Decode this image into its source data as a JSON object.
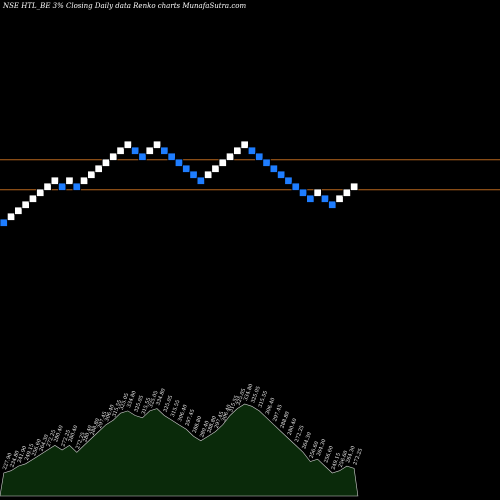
{
  "chart_data": {
    "type": "renko",
    "title": "NSE HTL_BE 3% Closing Daily data Renko charts MunafaSutra.com",
    "colors": {
      "background": "#000000",
      "up_brick": "#ffffff",
      "down_brick": "#1e7dff",
      "reference_line": "#b5651d",
      "volume_fill": "#0a2a0a",
      "volume_stroke": "#cfcfcf",
      "label_text": "#ffffff"
    },
    "bricks": [
      {
        "dir": "down",
        "level": 0
      },
      {
        "dir": "up",
        "level": 1
      },
      {
        "dir": "up",
        "level": 2
      },
      {
        "dir": "up",
        "level": 3
      },
      {
        "dir": "up",
        "level": 4
      },
      {
        "dir": "up",
        "level": 5
      },
      {
        "dir": "up",
        "level": 6
      },
      {
        "dir": "up",
        "level": 7
      },
      {
        "dir": "down",
        "level": 6
      },
      {
        "dir": "up",
        "level": 7
      },
      {
        "dir": "down",
        "level": 6
      },
      {
        "dir": "up",
        "level": 7
      },
      {
        "dir": "up",
        "level": 8
      },
      {
        "dir": "up",
        "level": 9
      },
      {
        "dir": "up",
        "level": 10
      },
      {
        "dir": "up",
        "level": 11
      },
      {
        "dir": "up",
        "level": 12
      },
      {
        "dir": "up",
        "level": 13
      },
      {
        "dir": "down",
        "level": 12
      },
      {
        "dir": "down",
        "level": 11
      },
      {
        "dir": "up",
        "level": 12
      },
      {
        "dir": "up",
        "level": 13
      },
      {
        "dir": "down",
        "level": 12
      },
      {
        "dir": "down",
        "level": 11
      },
      {
        "dir": "down",
        "level": 10
      },
      {
        "dir": "down",
        "level": 9
      },
      {
        "dir": "down",
        "level": 8
      },
      {
        "dir": "down",
        "level": 7
      },
      {
        "dir": "up",
        "level": 8
      },
      {
        "dir": "up",
        "level": 9
      },
      {
        "dir": "up",
        "level": 10
      },
      {
        "dir": "up",
        "level": 11
      },
      {
        "dir": "up",
        "level": 12
      },
      {
        "dir": "up",
        "level": 13
      },
      {
        "dir": "down",
        "level": 12
      },
      {
        "dir": "down",
        "level": 11
      },
      {
        "dir": "down",
        "level": 10
      },
      {
        "dir": "down",
        "level": 9
      },
      {
        "dir": "down",
        "level": 8
      },
      {
        "dir": "down",
        "level": 7
      },
      {
        "dir": "down",
        "level": 6
      },
      {
        "dir": "down",
        "level": 5
      },
      {
        "dir": "down",
        "level": 4
      },
      {
        "dir": "up",
        "level": 5
      },
      {
        "dir": "down",
        "level": 4
      },
      {
        "dir": "down",
        "level": 3
      },
      {
        "dir": "up",
        "level": 4
      },
      {
        "dir": "up",
        "level": 5
      },
      {
        "dir": "up",
        "level": 6
      }
    ],
    "reference_lines": [
      {
        "level": 10.5
      },
      {
        "level": 5.5
      }
    ],
    "volume_area": [
      10,
      11,
      13,
      14,
      16,
      18,
      20,
      22,
      20,
      22,
      19,
      22,
      25,
      28,
      31,
      33,
      36,
      37,
      35,
      34,
      37,
      38,
      35,
      33,
      31,
      29,
      26,
      24,
      26,
      28,
      31,
      35,
      38,
      40,
      39,
      37,
      34,
      31,
      28,
      25,
      22,
      19,
      15,
      16,
      13,
      10,
      11,
      13,
      12
    ],
    "volume_max": 60,
    "price_labels": [
      "227.90",
      "234.80",
      "241.90",
      "249.15",
      "256.60",
      "264.30",
      "272.25",
      "280.40",
      "272.25",
      "280.40",
      "272.25",
      "280.40",
      "288.80",
      "297.45",
      "306.40",
      "315.55",
      "325.05",
      "334.80",
      "325.05",
      "315.55",
      "325.05",
      "334.80",
      "325.05",
      "315.55",
      "306.40",
      "297.45",
      "288.80",
      "280.40",
      "288.80",
      "297.45",
      "306.40",
      "315.55",
      "325.05",
      "334.80",
      "325.05",
      "315.55",
      "306.40",
      "297.45",
      "288.80",
      "280.40",
      "272.25",
      "264.30",
      "256.60",
      "264.30",
      "256.60",
      "249.15",
      "256.60",
      "264.30",
      "272.25"
    ]
  }
}
